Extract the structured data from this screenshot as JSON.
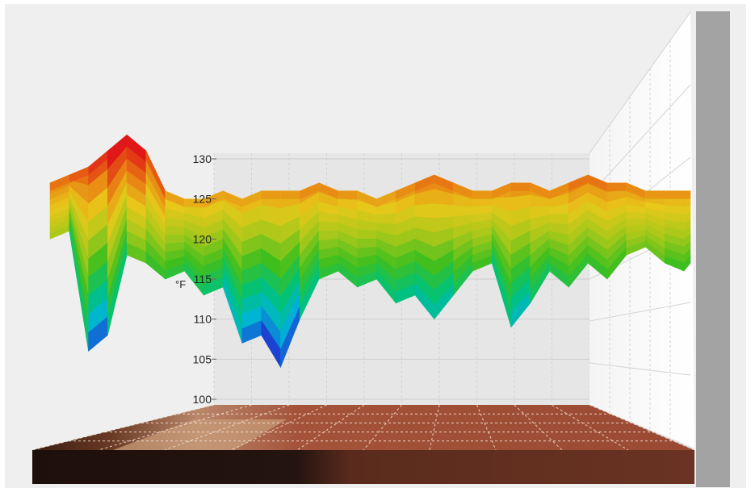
{
  "chart_data": {
    "type": "surface",
    "zlabel": "°F",
    "z_ticks": [
      100,
      105,
      110,
      115,
      120,
      125,
      130
    ],
    "zlim": [
      100,
      130
    ],
    "grid": true,
    "colormap": [
      "#8a00d6",
      "#1f2fd0",
      "#00b4d8",
      "#00c27a",
      "#3fbf1e",
      "#a8c81a",
      "#e8c81a",
      "#e87a12",
      "#e01818"
    ],
    "surface_profile": {
      "x": [
        0,
        3,
        6,
        9,
        12,
        15,
        18,
        21,
        24,
        27,
        30,
        33,
        36,
        39,
        42,
        45,
        48,
        51,
        54,
        57,
        60,
        63,
        66,
        69,
        72,
        75,
        78,
        81,
        84,
        87,
        90,
        93,
        96,
        99,
        100
      ],
      "top": [
        127,
        128,
        129,
        131,
        133,
        131,
        126,
        125,
        125,
        126,
        125,
        126,
        126,
        126,
        127,
        126,
        126,
        125,
        126,
        127,
        128,
        127,
        126,
        126,
        127,
        127,
        126,
        127,
        128,
        127,
        127,
        126,
        126,
        126,
        126
      ],
      "bottom": [
        120,
        121,
        106,
        108,
        118,
        117,
        115,
        116,
        113,
        114,
        107,
        108,
        104,
        110,
        115,
        116,
        114,
        115,
        112,
        113,
        110,
        113,
        116,
        117,
        109,
        112,
        116,
        114,
        117,
        115,
        118,
        119,
        117,
        116,
        117
      ]
    }
  }
}
